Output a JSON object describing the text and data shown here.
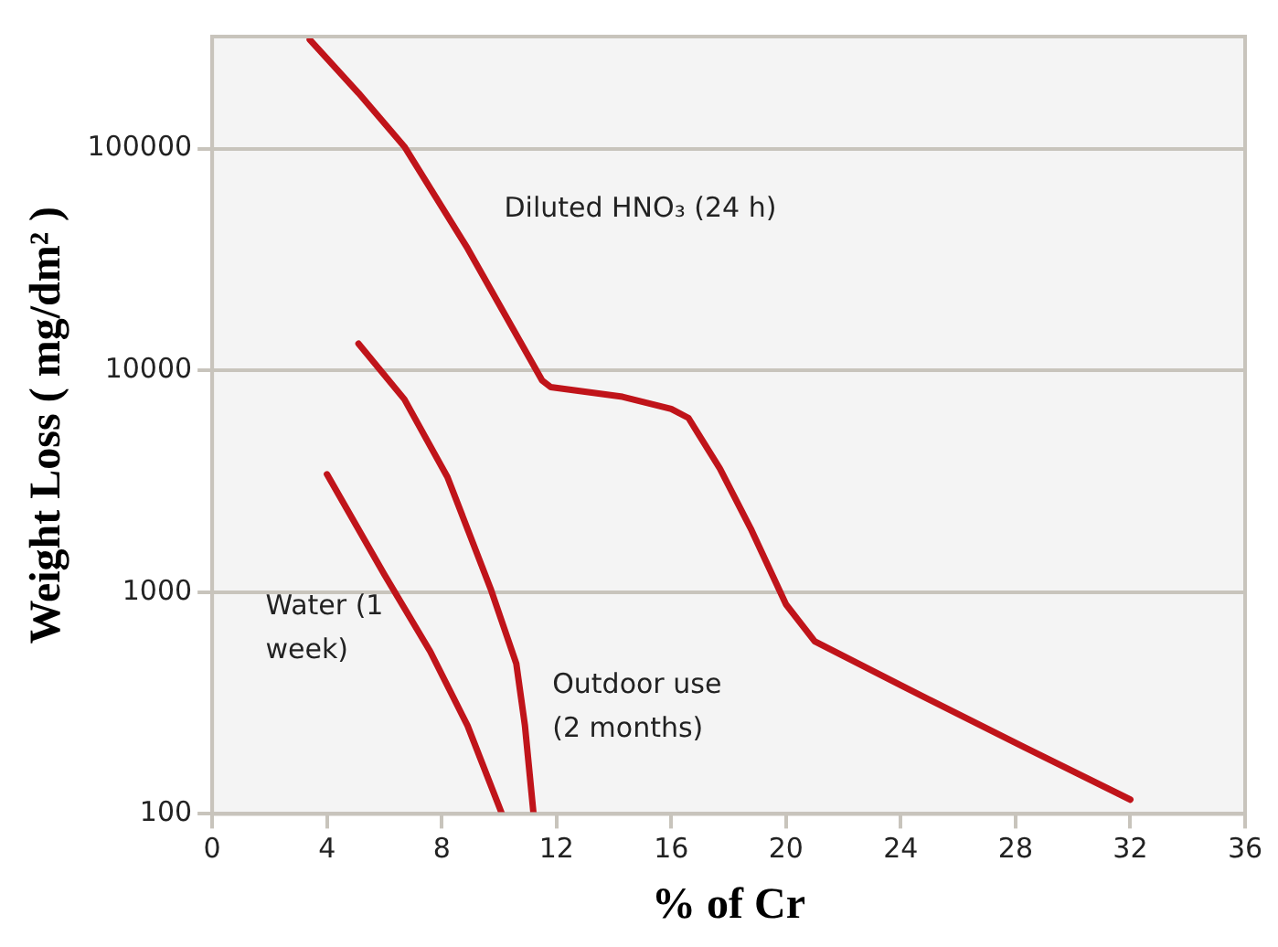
{
  "chart_data": {
    "type": "line",
    "xlabel": "% of Cr",
    "ylabel": "Weight Loss ( mg/dm² )",
    "log": "y",
    "grid": "y",
    "legend": false,
    "marker": "none",
    "line_style": "solid",
    "xlim": [
      0,
      36
    ],
    "xticks": [
      0,
      4,
      8,
      12,
      16,
      20,
      24,
      28,
      32,
      36
    ],
    "ylim": [
      100,
      320000
    ],
    "yticks": [
      100,
      1000,
      10000,
      100000
    ],
    "series": [
      {
        "name": "Diluted HNO₃ (24 h)",
        "color": "#c0141a",
        "x": [
          3.4,
          5.1,
          6.7,
          8.9,
          11.5,
          11.8,
          14.3,
          16.0,
          16.6,
          17.7,
          18.8,
          20.0,
          21.0,
          24.0,
          28.3,
          32.0
        ],
        "values": [
          310000,
          178000,
          102000,
          35500,
          9000,
          8400,
          7600,
          6700,
          6100,
          3600,
          1900,
          880,
          600,
          380,
          200,
          116
        ]
      },
      {
        "name": "Outdoor use (2 months)",
        "color": "#c0141a",
        "x": [
          5.1,
          6.7,
          8.2,
          9.7,
          10.6,
          10.9,
          11.2
        ],
        "values": [
          13200,
          7400,
          3300,
          1040,
          475,
          250,
          100
        ]
      },
      {
        "name": "Water (1 week)",
        "color": "#c0141a",
        "x": [
          4.0,
          6.0,
          7.6,
          8.9,
          10.1
        ],
        "values": [
          3400,
          1200,
          540,
          250,
          100
        ]
      }
    ]
  }
}
